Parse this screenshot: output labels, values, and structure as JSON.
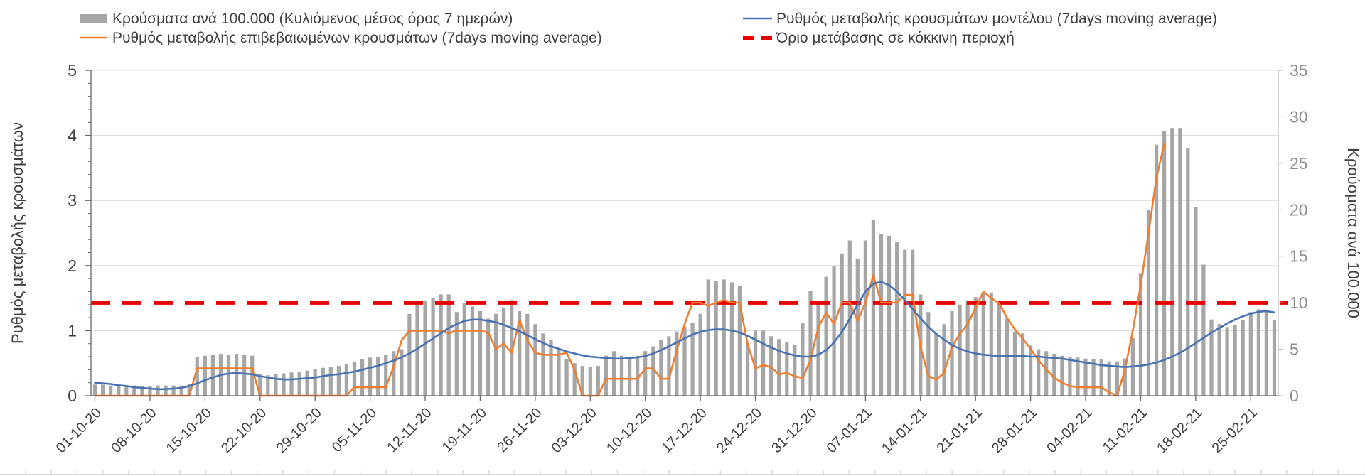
{
  "chart_data": {
    "type": "bar",
    "subtype": "combo-bar-line-daily",
    "title": "",
    "legend": {
      "position": "top",
      "bars_label": "Κρούσματα ανά 100.000 (Κυλιόμενος μέσος όρος 7 ημερών)",
      "confirmed_label": "Ρυθμός μεταβολής επιβεβαιωμένων κρουσμάτων (7days moving average)",
      "model_label": "Ρυθμός μεταβολής κρουσμάτων μοντέλου (7days moving average)",
      "threshold_label": "Όριο μετάβασης σε κόκκινη περιοχή"
    },
    "left_axis": {
      "label": "Ρυθμός μεταβολής κρουσμάτων",
      "min": 0,
      "max": 5,
      "ticks": [
        0,
        1,
        2,
        3,
        4,
        5
      ]
    },
    "right_axis": {
      "label": "Κρούσματα ανά 100.000",
      "min": 0,
      "max": 35,
      "ticks": [
        0,
        5,
        10,
        15,
        20,
        25,
        30,
        35
      ]
    },
    "x_tick_labels": [
      "01-10-20",
      "08-10-20",
      "15-10-20",
      "22-10-20",
      "29-10-20",
      "05-11-20",
      "12-11-20",
      "19-11-20",
      "26-11-20",
      "03-12-20",
      "10-12-20",
      "17-12-20",
      "24-12-20",
      "31-12-20",
      "07-01-21",
      "14-01-21",
      "21-01-21",
      "28-01-21",
      "04-02-21",
      "11-02-21",
      "18-02-21",
      "25-02-21"
    ],
    "x_tick_every_days": 7,
    "grid": "horizontal",
    "threshold": {
      "axis": "right",
      "value": 10,
      "color": "#e80000"
    },
    "colors": {
      "bars": "#a6a6a6",
      "model_line": "#4a72b2",
      "confirmed_line": "#ed7d31",
      "threshold": "#e80000",
      "grid": "#d9d9d9",
      "axis": "#666666",
      "text_dark": "#3f3f3f",
      "text_gray": "#8c8c8c"
    },
    "series": [
      {
        "name": "Κρούσματα ανά 100.000 (Κυλιόμενος μέσος όρος 7 ημερών)",
        "type": "bar",
        "axis": "right",
        "color": "#a6a6a6",
        "values": [
          1.2,
          1.2,
          1.1,
          1.1,
          1.1,
          1.1,
          1.0,
          1.0,
          1.1,
          1.1,
          1.1,
          1.1,
          1.3,
          4.2,
          4.3,
          4.4,
          4.5,
          4.4,
          4.5,
          4.4,
          4.3,
          2.3,
          2.2,
          2.3,
          2.4,
          2.5,
          2.6,
          2.7,
          2.9,
          3.0,
          3.1,
          3.2,
          3.4,
          3.6,
          3.9,
          4.1,
          4.2,
          4.4,
          4.8,
          5.0,
          8.8,
          9.8,
          10.2,
          10.5,
          10.9,
          10.9,
          9.0,
          10.0,
          9.6,
          9.1,
          8.3,
          8.8,
          9.5,
          10.3,
          9.1,
          8.8,
          7.7,
          6.7,
          6.0,
          4.9,
          3.9,
          3.5,
          3.2,
          3.1,
          3.2,
          4.3,
          4.8,
          4.3,
          4.2,
          4.3,
          4.8,
          5.3,
          6.0,
          6.4,
          6.9,
          7.4,
          7.8,
          8.8,
          12.5,
          12.3,
          12.5,
          12.2,
          11.8,
          5.7,
          7.0,
          7.0,
          6.4,
          6.1,
          5.8,
          5.5,
          7.8,
          11.3,
          10.2,
          12.8,
          13.9,
          15.3,
          16.7,
          14.7,
          16.7,
          18.9,
          17.4,
          17.2,
          16.5,
          15.7,
          15.7,
          10.9,
          9.0,
          6.7,
          7.7,
          9.1,
          9.8,
          10.2,
          10.6,
          11.1,
          11.1,
          10.0,
          8.3,
          6.9,
          6.7,
          5.4,
          5.0,
          4.8,
          4.5,
          4.3,
          4.2,
          4.1,
          4.0,
          3.9,
          3.9,
          3.7,
          3.7,
          4.0,
          6.2,
          13.2,
          20.0,
          27.0,
          28.5,
          28.8,
          28.8,
          26.6,
          20.3,
          14.1,
          8.2,
          7.7,
          7.4,
          7.6,
          8.1,
          9.0,
          9.3,
          9.2,
          8.1
        ]
      },
      {
        "name": "Ρυθμός μεταβολής επιβεβαιωμένων κρουσμάτων (7days moving average)",
        "type": "line",
        "axis": "left",
        "color": "#ed7d31",
        "values": [
          0,
          0,
          0,
          0,
          0,
          0,
          0,
          0,
          0,
          0,
          0,
          0,
          0,
          0.42,
          0.42,
          0.42,
          0.42,
          0.42,
          0.42,
          0.42,
          0.42,
          0,
          0,
          0,
          0,
          0,
          0,
          0,
          0,
          0,
          0,
          0,
          0,
          0.13,
          0.13,
          0.13,
          0.13,
          0.13,
          0.45,
          0.85,
          1.0,
          1.0,
          1.0,
          1.0,
          1.0,
          0.96,
          1.0,
          1.0,
          1.0,
          1.0,
          0.97,
          0.72,
          0.8,
          0.66,
          1.16,
          0.85,
          0.66,
          0.63,
          0.63,
          0.63,
          0.66,
          0.4,
          0,
          0,
          0,
          0.26,
          0.26,
          0.26,
          0.26,
          0.26,
          0.42,
          0.42,
          0.26,
          0.26,
          0.7,
          1.1,
          1.43,
          1.43,
          1.38,
          1.43,
          1.47,
          1.43,
          1.43,
          0.8,
          0.42,
          0.47,
          0.44,
          0.33,
          0.35,
          0.3,
          0.27,
          0.55,
          1.05,
          1.28,
          1.1,
          1.43,
          1.43,
          1.15,
          1.43,
          1.85,
          1.43,
          1.43,
          1.43,
          1.55,
          1.55,
          0.75,
          0.3,
          0.25,
          0.35,
          0.75,
          0.95,
          1.1,
          1.35,
          1.6,
          1.5,
          1.42,
          1.2,
          1.02,
          0.88,
          0.72,
          0.55,
          0.4,
          0.28,
          0.2,
          0.15,
          0.13,
          0.13,
          0.13,
          0.13,
          0.05,
          0,
          0.4,
          1.0,
          1.7,
          2.5,
          3.35,
          3.87,
          null,
          null,
          null,
          null,
          null,
          null,
          null,
          null,
          null,
          null,
          null,
          null,
          null,
          null
        ]
      },
      {
        "name": "Ρυθμός μεταβολής κρουσμάτων μοντέλου (7days moving average)",
        "type": "line",
        "axis": "left",
        "color": "#4a72b2",
        "values": [
          0.2,
          0.19,
          0.18,
          0.16,
          0.15,
          0.13,
          0.12,
          0.11,
          0.1,
          0.1,
          0.11,
          0.12,
          0.15,
          0.19,
          0.24,
          0.28,
          0.32,
          0.34,
          0.35,
          0.34,
          0.33,
          0.3,
          0.28,
          0.26,
          0.25,
          0.25,
          0.26,
          0.27,
          0.28,
          0.3,
          0.32,
          0.33,
          0.35,
          0.37,
          0.4,
          0.43,
          0.46,
          0.5,
          0.54,
          0.59,
          0.65,
          0.72,
          0.8,
          0.88,
          0.96,
          1.04,
          1.1,
          1.15,
          1.17,
          1.17,
          1.15,
          1.13,
          1.09,
          1.04,
          0.99,
          0.93,
          0.87,
          0.81,
          0.76,
          0.72,
          0.68,
          0.65,
          0.62,
          0.6,
          0.59,
          0.58,
          0.57,
          0.57,
          0.58,
          0.59,
          0.61,
          0.65,
          0.7,
          0.76,
          0.82,
          0.88,
          0.94,
          0.98,
          1.01,
          1.02,
          1.02,
          1.0,
          0.97,
          0.92,
          0.86,
          0.8,
          0.74,
          0.69,
          0.65,
          0.62,
          0.6,
          0.6,
          0.63,
          0.7,
          0.82,
          0.98,
          1.18,
          1.4,
          1.6,
          1.72,
          1.75,
          1.7,
          1.6,
          1.47,
          1.33,
          1.19,
          1.06,
          0.95,
          0.86,
          0.78,
          0.72,
          0.68,
          0.65,
          0.63,
          0.62,
          0.61,
          0.61,
          0.61,
          0.61,
          0.6,
          0.6,
          0.59,
          0.58,
          0.57,
          0.55,
          0.53,
          0.51,
          0.49,
          0.47,
          0.46,
          0.45,
          0.44,
          0.45,
          0.46,
          0.48,
          0.51,
          0.55,
          0.6,
          0.66,
          0.73,
          0.81,
          0.89,
          0.97,
          1.04,
          1.11,
          1.17,
          1.22,
          1.26,
          1.29,
          1.3,
          1.28
        ]
      }
    ]
  }
}
